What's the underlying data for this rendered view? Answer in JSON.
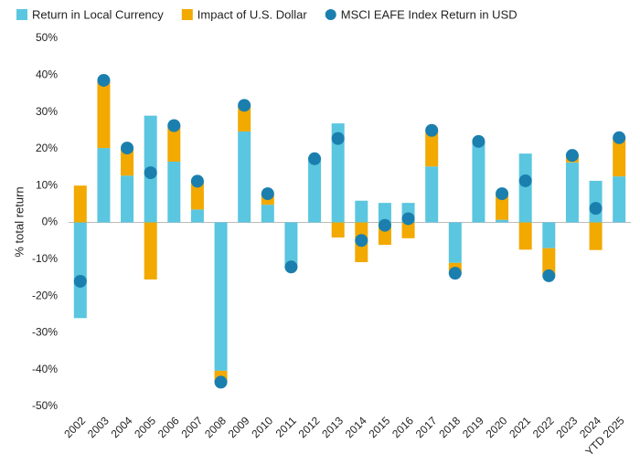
{
  "chart_data": {
    "type": "bar",
    "stacked": true,
    "y_label": "% total return",
    "categories": [
      "2002",
      "2003",
      "2004",
      "2005",
      "2006",
      "2007",
      "2008",
      "2009",
      "2010",
      "2011",
      "2012",
      "2013",
      "2014",
      "2015",
      "2016",
      "2017",
      "2018",
      "2019",
      "2020",
      "2021",
      "2022",
      "2023",
      "2024",
      "YTD 2025"
    ],
    "series": [
      {
        "name": "Return in Local Currency",
        "color": "#5ac6e0",
        "values": [
          -26,
          20.2,
          12.7,
          29,
          16.5,
          3.5,
          -40.3,
          24.7,
          4.8,
          -12.1,
          17.3,
          26.9,
          5.9,
          5.3,
          5.3,
          15.2,
          -11,
          21.7,
          0.7,
          18.7,
          -7,
          16.3,
          11.3,
          12.5
        ]
      },
      {
        "name": "Impact of U.S. Dollar",
        "color": "#f2a900",
        "values": [
          10,
          18.4,
          7.5,
          -15.5,
          9.8,
          7.7,
          -3.1,
          7.1,
          3,
          0,
          0,
          -4.1,
          -10.8,
          -6.1,
          -4.3,
          9.8,
          -2.8,
          0.3,
          7.1,
          -7.4,
          -7.5,
          1.9,
          -7.5,
          10.5
        ]
      },
      {
        "name": "MSCI EAFE Index Return in USD",
        "color": "#1a7fae",
        "type": "scatter",
        "values": [
          -16,
          38.6,
          20.2,
          13.5,
          26.3,
          11.2,
          -43.4,
          31.8,
          7.8,
          -12.1,
          17.3,
          22.8,
          -4.9,
          -0.8,
          1,
          25,
          -13.8,
          22,
          7.8,
          11.3,
          -14.5,
          18.2,
          3.8,
          23
        ]
      }
    ],
    "ylim": [
      -50,
      50
    ],
    "yticks": [
      {
        "value": -50,
        "label": "-50%"
      },
      {
        "value": -40,
        "label": "-40%"
      },
      {
        "value": -30,
        "label": "-30%"
      },
      {
        "value": -20,
        "label": "-20%"
      },
      {
        "value": -10,
        "label": "-10%"
      },
      {
        "value": 0,
        "label": "0%"
      },
      {
        "value": 10,
        "label": "10%"
      },
      {
        "value": 20,
        "label": "20%"
      },
      {
        "value": 30,
        "label": "30%"
      },
      {
        "value": 40,
        "label": "40%"
      },
      {
        "value": 50,
        "label": "50%"
      }
    ],
    "legend": "top",
    "grid": false
  }
}
